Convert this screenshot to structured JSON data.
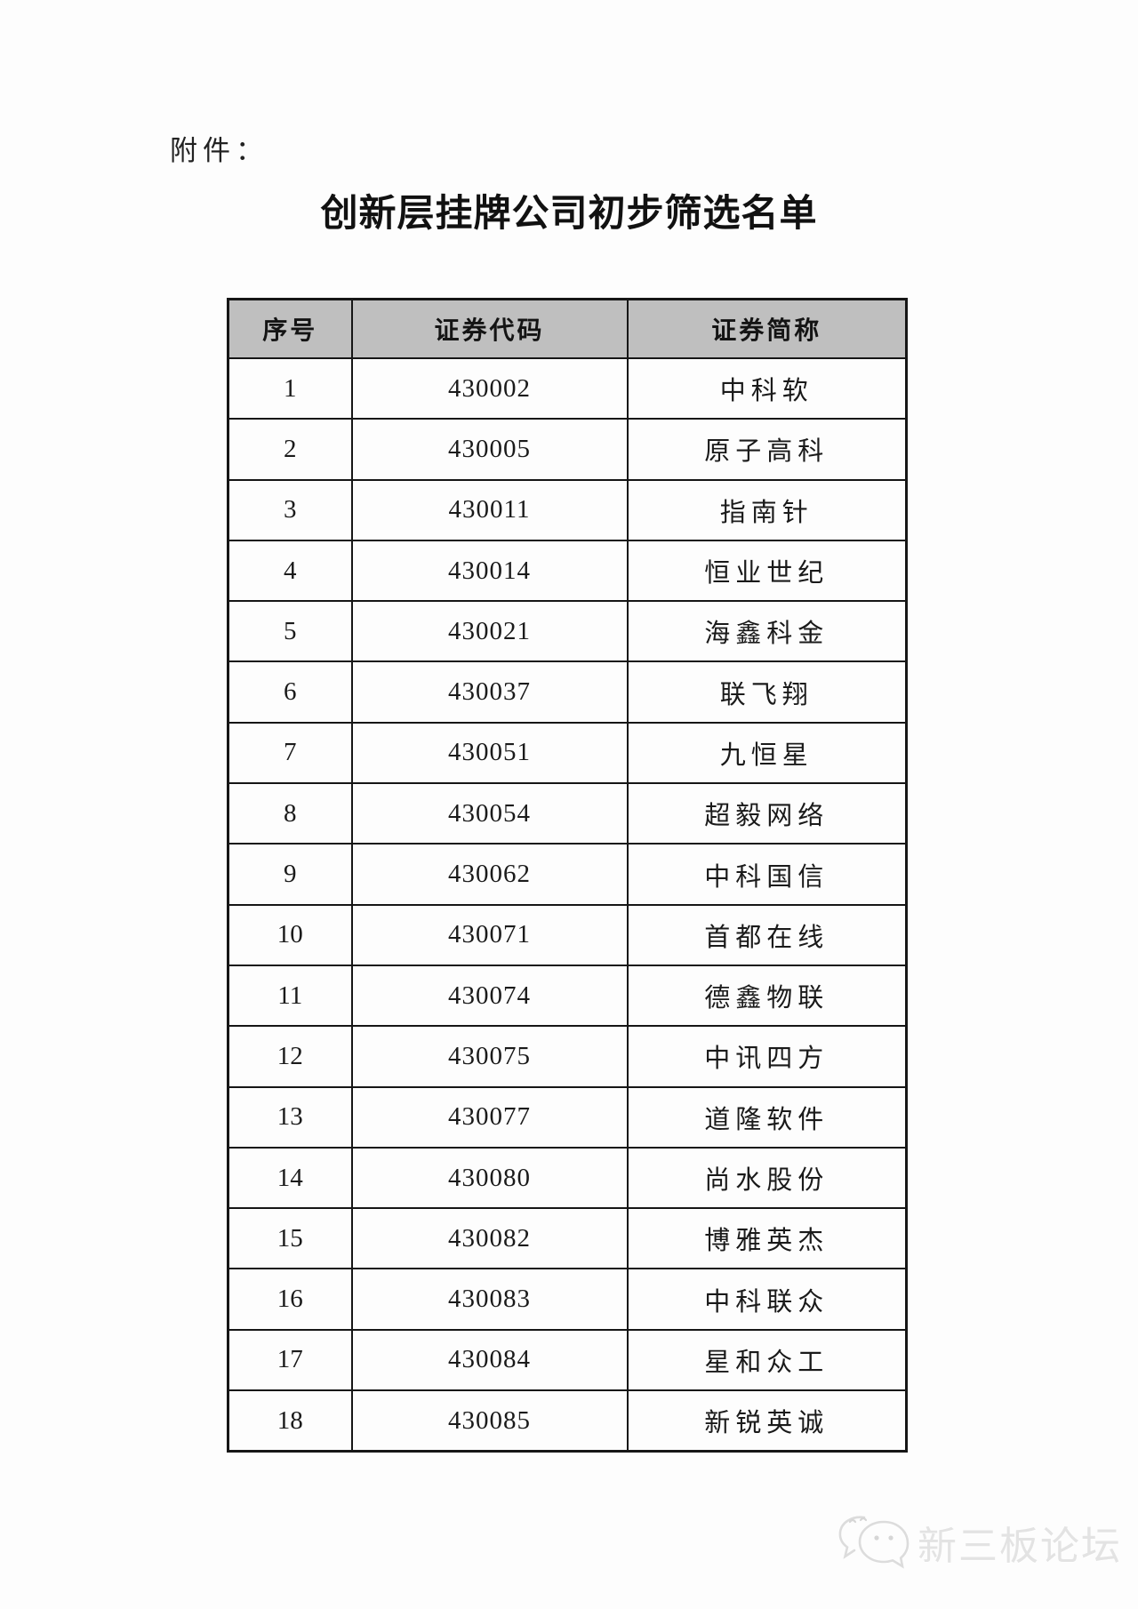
{
  "page": {
    "attachment_label": "附件：",
    "title": "创新层挂牌公司初步筛选名单"
  },
  "table": {
    "headers": [
      "序号",
      "证券代码",
      "证券简称"
    ],
    "rows": [
      [
        "1",
        "430002",
        "中科软"
      ],
      [
        "2",
        "430005",
        "原子高科"
      ],
      [
        "3",
        "430011",
        "指南针"
      ],
      [
        "4",
        "430014",
        "恒业世纪"
      ],
      [
        "5",
        "430021",
        "海鑫科金"
      ],
      [
        "6",
        "430037",
        "联飞翔"
      ],
      [
        "7",
        "430051",
        "九恒星"
      ],
      [
        "8",
        "430054",
        "超毅网络"
      ],
      [
        "9",
        "430062",
        "中科国信"
      ],
      [
        "10",
        "430071",
        "首都在线"
      ],
      [
        "11",
        "430074",
        "德鑫物联"
      ],
      [
        "12",
        "430075",
        "中讯四方"
      ],
      [
        "13",
        "430077",
        "道隆软件"
      ],
      [
        "14",
        "430080",
        "尚水股份"
      ],
      [
        "15",
        "430082",
        "博雅英杰"
      ],
      [
        "16",
        "430083",
        "中科联众"
      ],
      [
        "17",
        "430084",
        "星和众工"
      ],
      [
        "18",
        "430085",
        "新锐英诚"
      ]
    ]
  },
  "watermark": {
    "logo": "chat-bubbles-icon",
    "text": "新三板论坛"
  },
  "colors": {
    "header_bg": "#bfbfbf",
    "border": "#161616",
    "watermark_text": "#e3e3e3",
    "page_bg": "#fdfdfd"
  }
}
